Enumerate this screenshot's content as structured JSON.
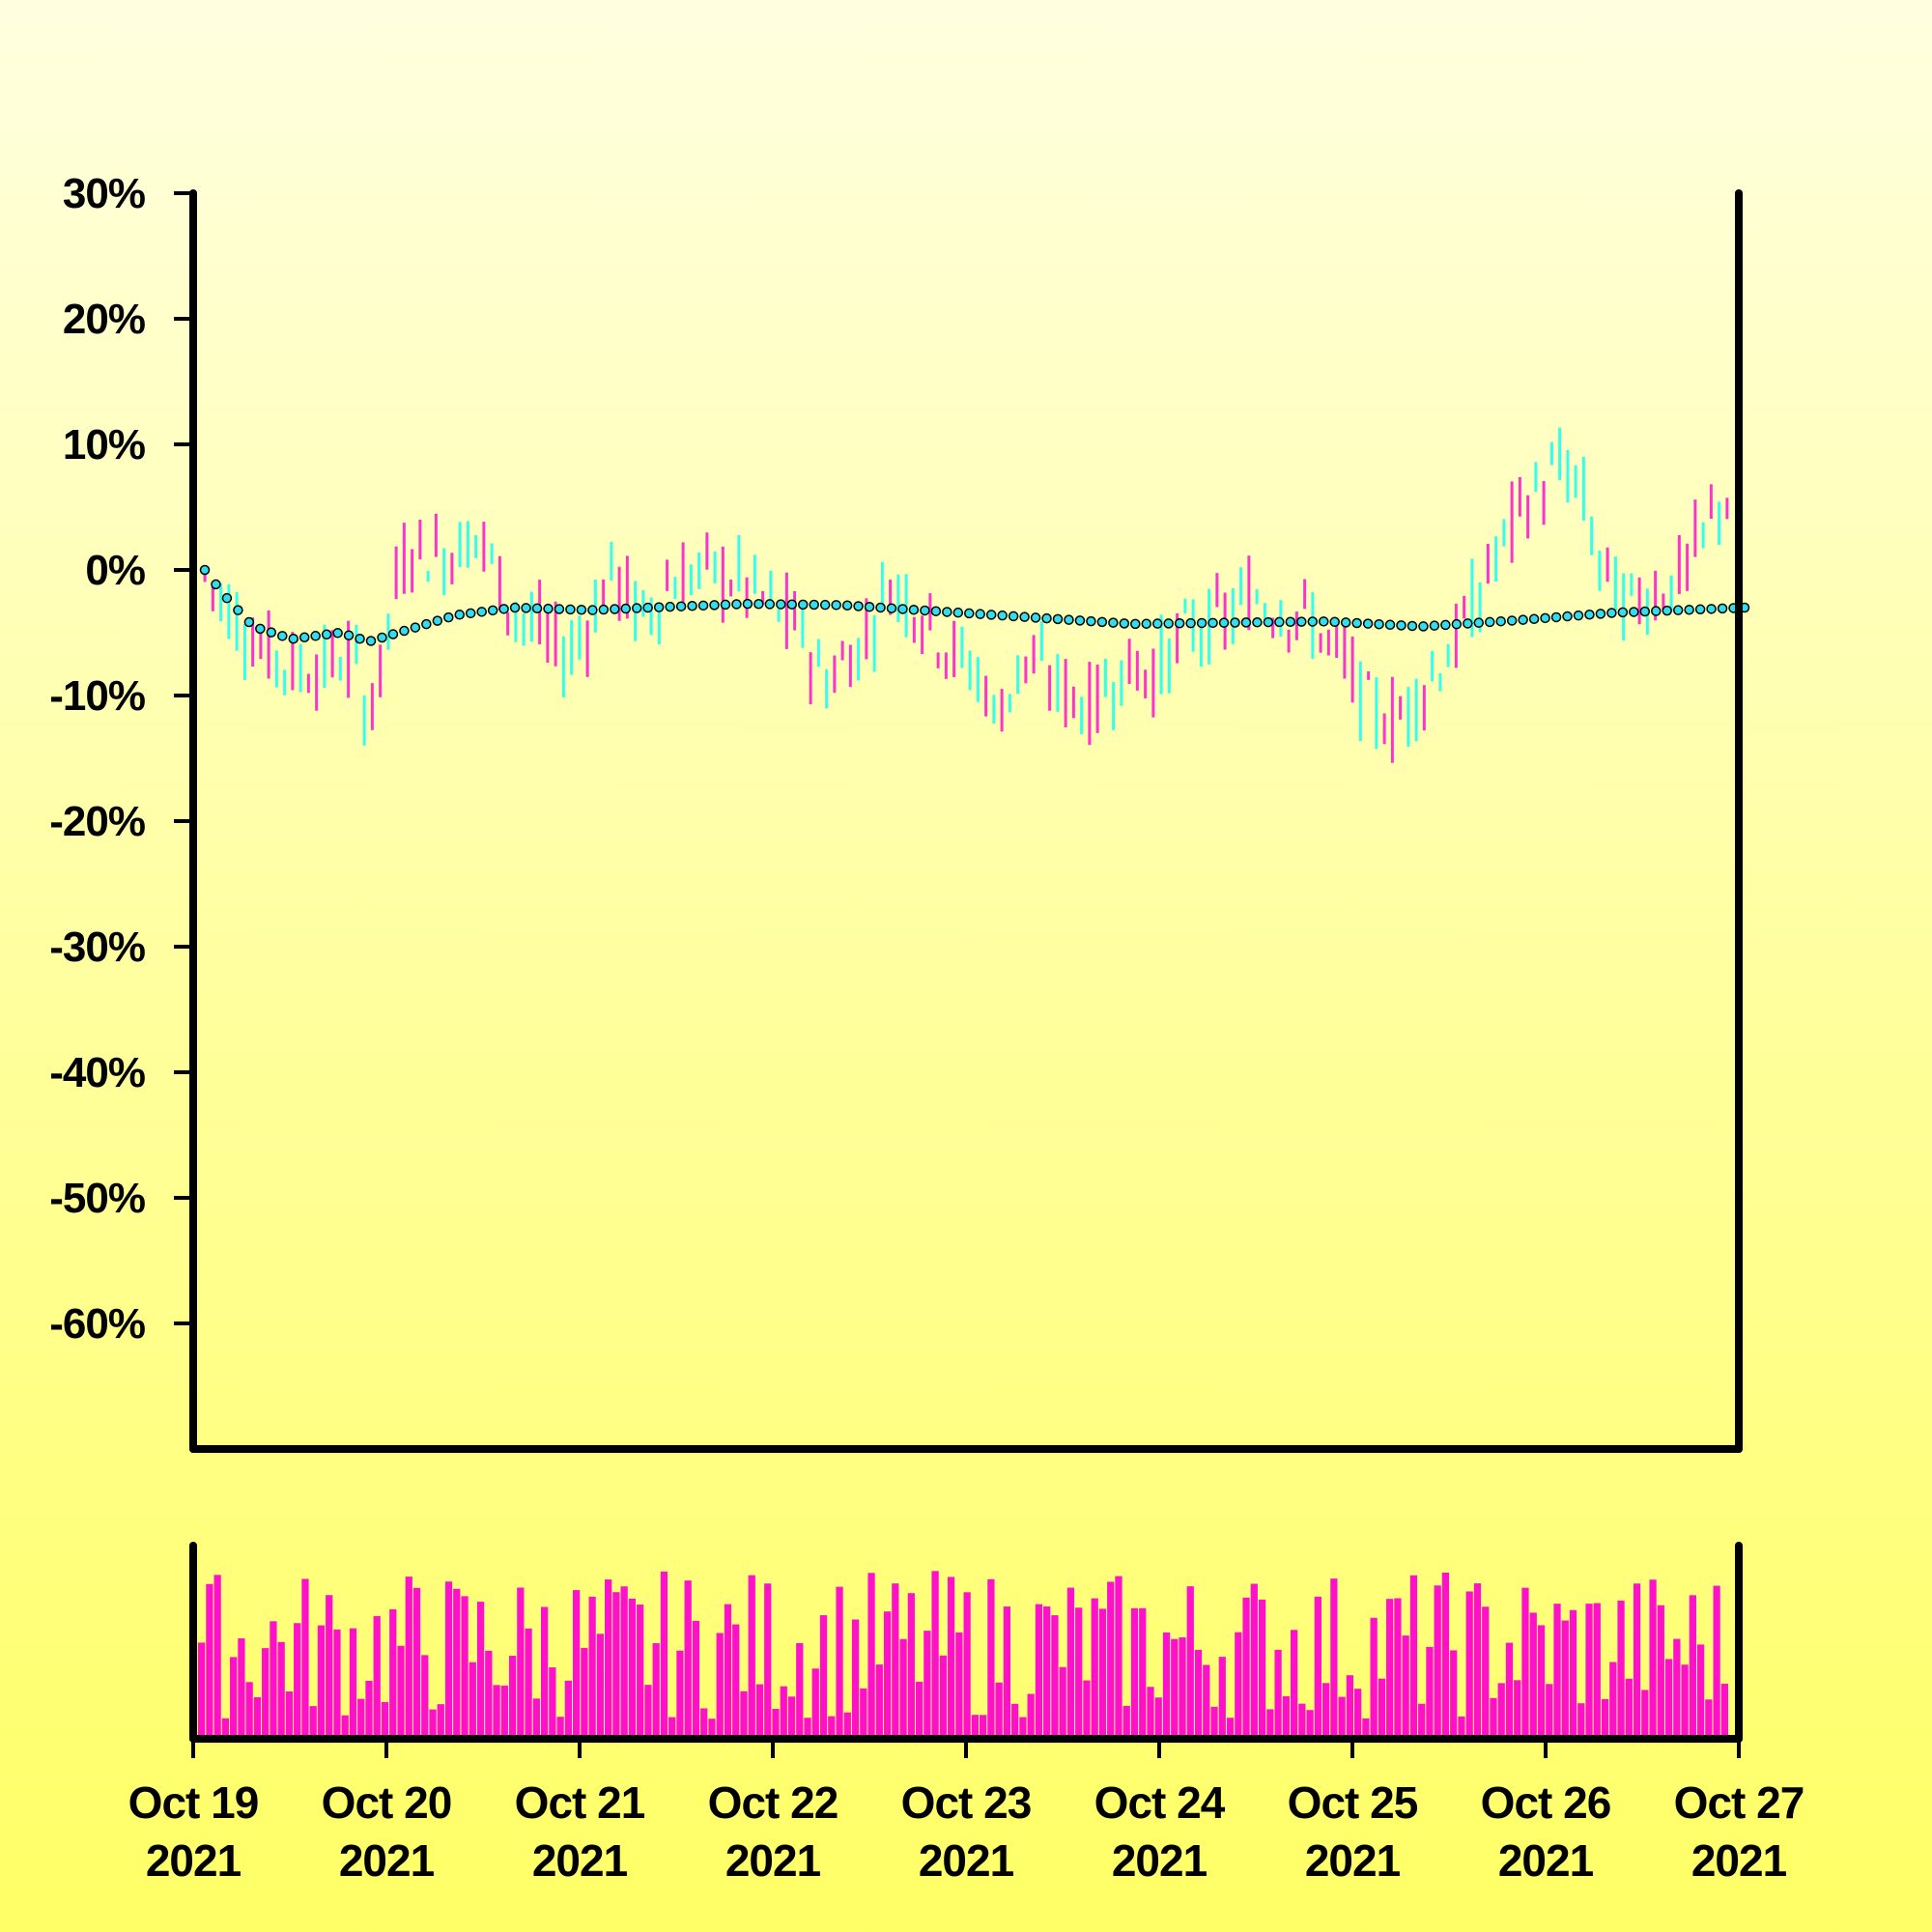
{
  "chart_data": {
    "type": "ohlc",
    "title": "",
    "xlabel": "",
    "ylabel": "",
    "y_axis": {
      "ticks": [
        30,
        20,
        10,
        0,
        -10,
        -20,
        -30,
        -40,
        -50,
        -60
      ],
      "tick_labels": [
        "30%",
        "20%",
        "10%",
        "0%",
        "-10%",
        "-20%",
        "-30%",
        "-40%",
        "-50%",
        "-60%"
      ],
      "ylim": [
        -70,
        30
      ]
    },
    "x_axis": {
      "start": "2021-10-19",
      "end": "2021-10-27",
      "tick_labels": [
        {
          "month_day": "Oct 19",
          "year": "2021"
        },
        {
          "month_day": "Oct 20",
          "year": "2021"
        },
        {
          "month_day": "Oct 21",
          "year": "2021"
        },
        {
          "month_day": "Oct 22",
          "year": "2021"
        },
        {
          "month_day": "Oct 23",
          "year": "2021"
        },
        {
          "month_day": "Oct 24",
          "year": "2021"
        },
        {
          "month_day": "Oct 25",
          "year": "2021"
        },
        {
          "month_day": "Oct 26",
          "year": "2021"
        },
        {
          "month_day": "Oct 27",
          "year": "2021"
        }
      ]
    },
    "close_path": [
      [
        0,
        0
      ],
      [
        0.3,
        -6
      ],
      [
        0.5,
        -8
      ],
      [
        0.8,
        -7
      ],
      [
        0.85,
        -11
      ],
      [
        0.93,
        -9
      ],
      [
        1.0,
        -2
      ],
      [
        1.1,
        2
      ],
      [
        1.25,
        1
      ],
      [
        1.45,
        3
      ],
      [
        1.62,
        -3
      ],
      [
        1.78,
        -5
      ],
      [
        1.9,
        -7
      ],
      [
        2.0,
        -5
      ],
      [
        2.15,
        0
      ],
      [
        2.3,
        -4
      ],
      [
        2.45,
        -1
      ],
      [
        2.65,
        0
      ],
      [
        2.83,
        -1
      ],
      [
        3.0,
        -3
      ],
      [
        3.15,
        -5
      ],
      [
        3.25,
        -9
      ],
      [
        3.45,
        -6
      ],
      [
        3.6,
        -1
      ],
      [
        3.75,
        -3
      ],
      [
        3.9,
        -6
      ],
      [
        4.1,
        -9
      ],
      [
        4.15,
        -12
      ],
      [
        4.3,
        -7
      ],
      [
        4.45,
        -9
      ],
      [
        4.65,
        -11
      ],
      [
        4.8,
        -8
      ],
      [
        5.0,
        -8
      ],
      [
        5.15,
        -5
      ],
      [
        5.35,
        -4
      ],
      [
        5.5,
        -2
      ],
      [
        5.65,
        -3
      ],
      [
        5.8,
        -4
      ],
      [
        6.0,
        -8
      ],
      [
        6.1,
        -11
      ],
      [
        6.25,
        -12
      ],
      [
        6.4,
        -9
      ],
      [
        6.55,
        -6
      ],
      [
        6.65,
        -3
      ],
      [
        6.8,
        2
      ],
      [
        6.9,
        5
      ],
      [
        7.1,
        8
      ],
      [
        7.2,
        7
      ],
      [
        7.3,
        1
      ],
      [
        7.45,
        -3
      ],
      [
        7.55,
        -2
      ],
      [
        7.7,
        -1
      ],
      [
        7.8,
        1
      ],
      [
        7.9,
        4
      ],
      [
        8.0,
        7
      ],
      [
        7.97,
        8
      ]
    ],
    "moving_average_path": [
      [
        0,
        0
      ],
      [
        0.1,
        -2
      ],
      [
        0.25,
        -4.5
      ],
      [
        0.45,
        -5.5
      ],
      [
        0.7,
        -5
      ],
      [
        0.85,
        -5.7
      ],
      [
        1.0,
        -5
      ],
      [
        1.3,
        -3.6
      ],
      [
        1.6,
        -3
      ],
      [
        2.0,
        -3.2
      ],
      [
        2.3,
        -3.0
      ],
      [
        2.8,
        -2.7
      ],
      [
        3.3,
        -2.8
      ],
      [
        3.8,
        -3.3
      ],
      [
        4.3,
        -3.8
      ],
      [
        4.8,
        -4.3
      ],
      [
        5.3,
        -4.2
      ],
      [
        5.8,
        -4.1
      ],
      [
        6.3,
        -4.5
      ],
      [
        6.8,
        -4.0
      ],
      [
        7.3,
        -3.4
      ],
      [
        7.97,
        -3.0
      ]
    ],
    "candles_per_day": 24,
    "volume_seed": 7
  }
}
